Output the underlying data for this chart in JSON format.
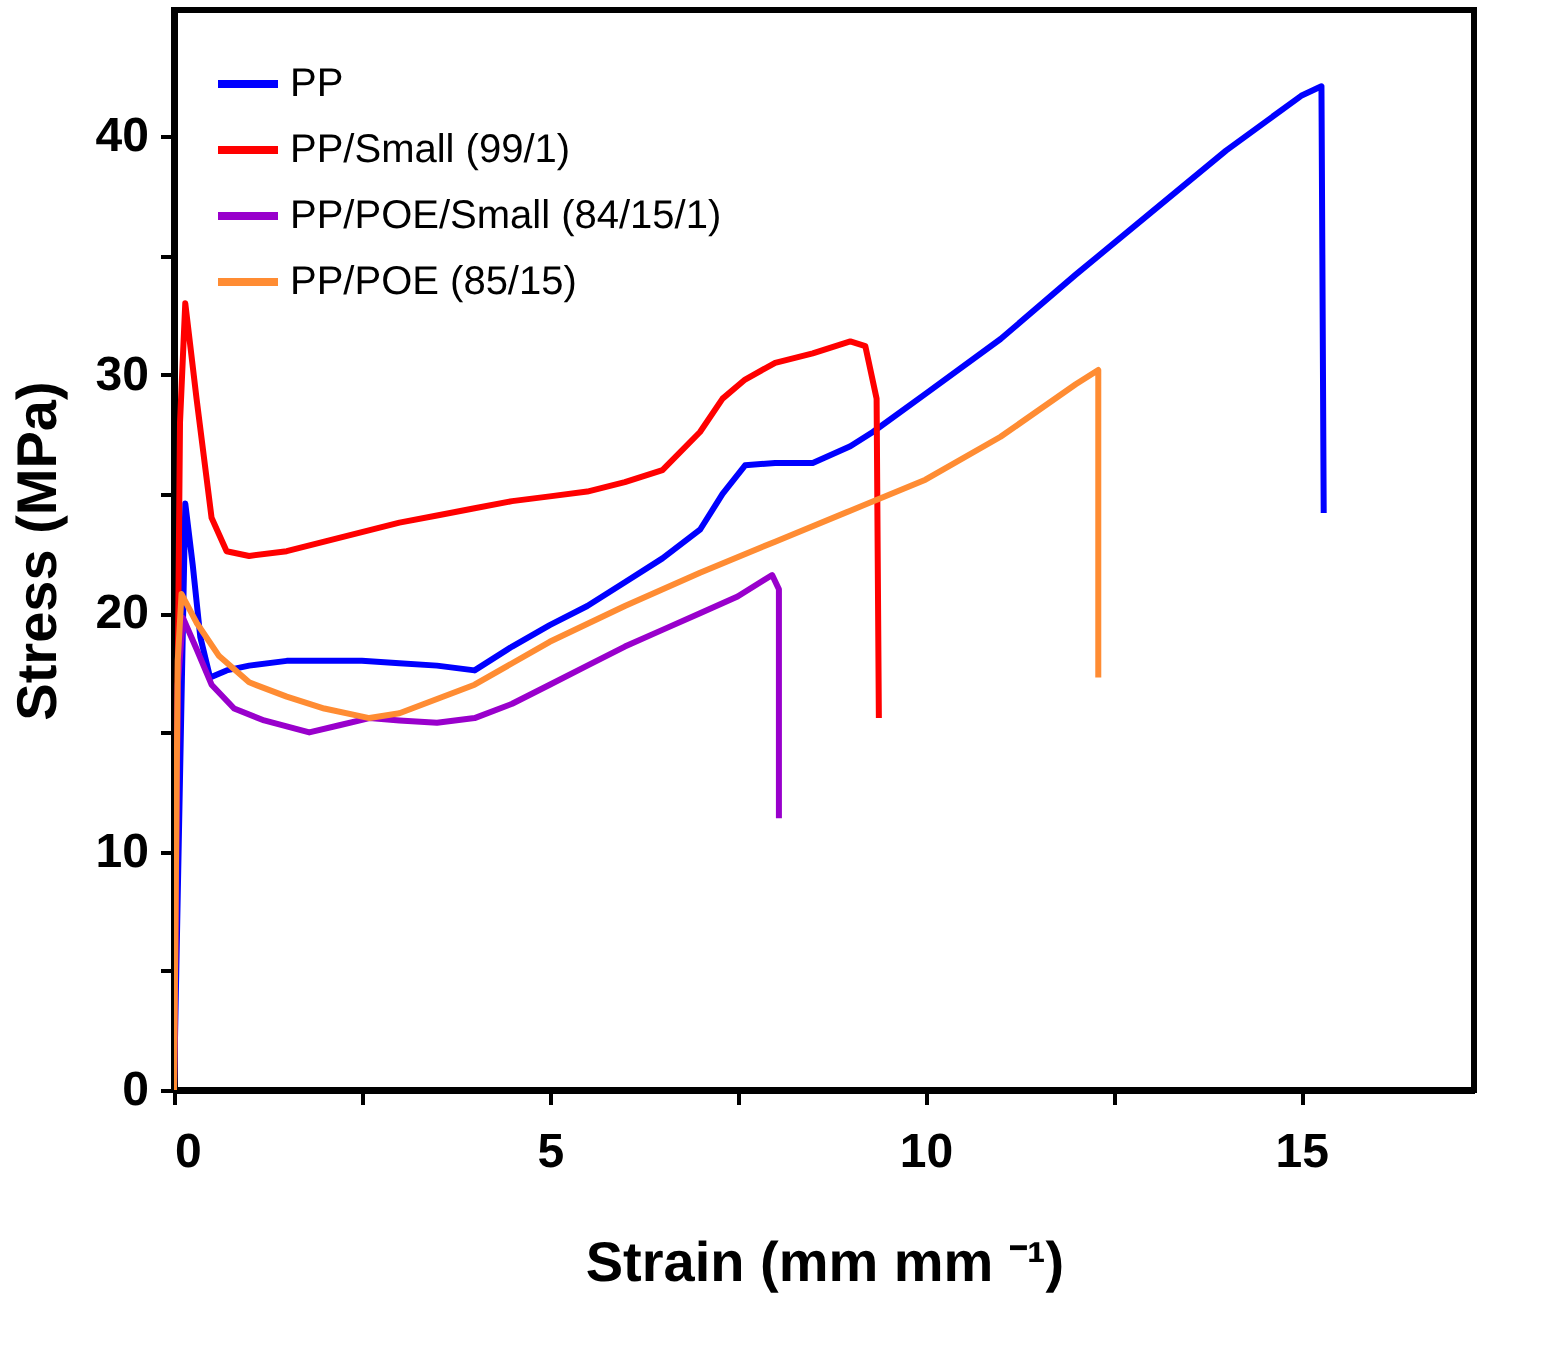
{
  "chart_data": {
    "type": "line",
    "xlabel": "Strain (mm mm ⁻¹)",
    "ylabel": "Stress (MPa)",
    "xlim": [
      0,
      17.3
    ],
    "ylim": [
      0,
      45.3
    ],
    "xticks": [
      0,
      {
        "value": 2.5,
        "label": null
      },
      5,
      {
        "value": 7.5,
        "label": null
      },
      10,
      {
        "value": 12.5,
        "label": null
      },
      15
    ],
    "yticks": [
      0,
      {
        "value": 5,
        "label": null
      },
      10,
      {
        "value": 15,
        "label": null
      },
      20,
      {
        "value": 25,
        "label": null
      },
      30,
      {
        "value": 35,
        "label": null
      },
      40
    ],
    "grid": false,
    "legend": "top left",
    "line_style": "solid",
    "marker": "none",
    "series": [
      {
        "name": "PP",
        "color": "#0000ff",
        "x": [
          0,
          0.15,
          0.25,
          0.35,
          0.48,
          0.7,
          1,
          1.5,
          2,
          2.5,
          3,
          3.5,
          4,
          4.5,
          5,
          5.5,
          6,
          6.5,
          7,
          7.3,
          7.6,
          8,
          8.5,
          9,
          9.3,
          10,
          11,
          12,
          13,
          14,
          15,
          15.27,
          15.3
        ],
        "values": [
          0,
          24.6,
          22,
          19,
          17.3,
          17.6,
          17.8,
          18,
          18,
          18,
          17.9,
          17.8,
          17.6,
          18.6,
          19.5,
          20.3,
          21.3,
          22.3,
          23.5,
          25,
          26.2,
          26.3,
          26.3,
          27,
          27.6,
          29.2,
          31.5,
          34.2,
          36.8,
          39.4,
          41.7,
          42.1,
          24.2
        ]
      },
      {
        "name": "PP/Small (99/1)",
        "color": "#ff0000",
        "x": [
          0,
          0.08,
          0.15,
          0.3,
          0.5,
          0.7,
          1,
          1.5,
          2,
          2.5,
          3,
          3.5,
          4,
          4.5,
          5,
          5.5,
          6,
          6.5,
          7,
          7.3,
          7.6,
          8,
          8.5,
          9,
          9.2,
          9.35,
          9.38
        ],
        "values": [
          0,
          28,
          33,
          29,
          24,
          22.6,
          22.4,
          22.6,
          23,
          23.4,
          23.8,
          24.1,
          24.4,
          24.7,
          24.9,
          25.1,
          25.5,
          26,
          27.6,
          29,
          29.8,
          30.5,
          30.9,
          31.4,
          31.2,
          29,
          15.6
        ]
      },
      {
        "name": "PP/POE/Small (84/15/1)",
        "color": "#9900cc",
        "x": [
          0,
          0.05,
          0.12,
          0.3,
          0.5,
          0.8,
          1.2,
          1.8,
          2.2,
          2.6,
          3,
          3.5,
          4,
          4.5,
          5,
          5.5,
          6,
          6.5,
          7,
          7.5,
          7.96,
          8.05,
          8.05
        ],
        "values": [
          0,
          17,
          19.8,
          18.5,
          17,
          16,
          15.5,
          15,
          15.3,
          15.6,
          15.5,
          15.4,
          15.6,
          16.2,
          17,
          17.8,
          18.6,
          19.3,
          20,
          20.7,
          21.6,
          21,
          11.4
        ]
      },
      {
        "name": "PP/POE (85/15)",
        "color": "#ff8c33",
        "x": [
          0,
          0.05,
          0.1,
          0.3,
          0.6,
          1,
          1.5,
          2,
          2.6,
          3,
          3.5,
          4,
          4.5,
          5,
          6,
          7,
          8,
          9,
          10,
          11,
          12,
          12.3,
          12.3
        ],
        "values": [
          0,
          18,
          20.8,
          19.6,
          18.2,
          17.1,
          16.5,
          16,
          15.6,
          15.8,
          16.4,
          17,
          17.9,
          18.8,
          20.3,
          21.7,
          23,
          24.3,
          25.6,
          27.4,
          29.6,
          30.2,
          17.3
        ]
      }
    ]
  }
}
